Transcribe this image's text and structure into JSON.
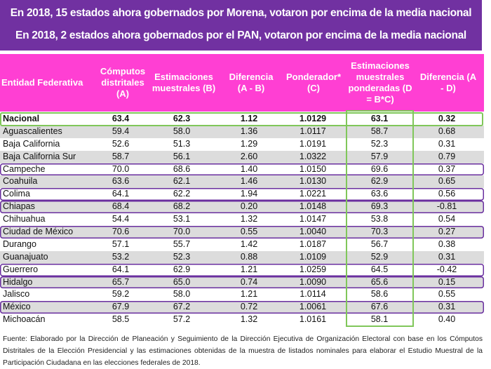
{
  "banner": {
    "line1": "En 2018, 15 estados ahora gobernados por Morena, votaron por encima de la media nacional",
    "line2": "En 2018, 2 estados ahora gobernados por el PAN, votaron por encima de la media nacional"
  },
  "headers": [
    "Entidad Federativa",
    "Cómputos distritales (A)",
    "Estimaciones muestrales (B)",
    "Diferencia (A - B)",
    "Ponderador* (C)",
    "Estimaciones muestrales ponderadas (D = B*C)",
    "Diferencia (A - D)"
  ],
  "rows": [
    {
      "e": "Nacional",
      "v": [
        "63.4",
        "62.3",
        "1.12",
        "1.0129",
        "63.1",
        "0.32"
      ],
      "highlight": "green"
    },
    {
      "e": "Aguascalientes",
      "v": [
        "59.4",
        "58.0",
        "1.36",
        "1.0117",
        "58.7",
        "0.68"
      ]
    },
    {
      "e": "Baja California",
      "v": [
        "52.6",
        "51.3",
        "1.29",
        "1.0191",
        "52.3",
        "0.31"
      ]
    },
    {
      "e": "Baja California Sur",
      "v": [
        "58.7",
        "56.1",
        "2.60",
        "1.0322",
        "57.9",
        "0.79"
      ]
    },
    {
      "e": "Campeche",
      "v": [
        "70.0",
        "68.6",
        "1.40",
        "1.0150",
        "69.6",
        "0.37"
      ],
      "highlight": "purple"
    },
    {
      "e": "Coahuila",
      "v": [
        "63.6",
        "62.1",
        "1.46",
        "1.0130",
        "62.9",
        "0.65"
      ]
    },
    {
      "e": "Colima",
      "v": [
        "64.1",
        "62.2",
        "1.94",
        "1.0221",
        "63.6",
        "0.56"
      ],
      "highlight": "purple"
    },
    {
      "e": "Chiapas",
      "v": [
        "68.4",
        "68.2",
        "0.20",
        "1.0148",
        "69.3",
        "-0.81"
      ],
      "highlight": "purple"
    },
    {
      "e": "Chihuahua",
      "v": [
        "54.4",
        "53.1",
        "1.32",
        "1.0147",
        "53.8",
        "0.54"
      ]
    },
    {
      "e": "Ciudad de México",
      "v": [
        "70.6",
        "70.0",
        "0.55",
        "1.0040",
        "70.3",
        "0.27"
      ],
      "highlight": "purple"
    },
    {
      "e": "Durango",
      "v": [
        "57.1",
        "55.7",
        "1.42",
        "1.0187",
        "56.7",
        "0.38"
      ]
    },
    {
      "e": "Guanajuato",
      "v": [
        "53.2",
        "52.3",
        "0.88",
        "1.0109",
        "52.9",
        "0.31"
      ]
    },
    {
      "e": "Guerrero",
      "v": [
        "64.1",
        "62.9",
        "1.21",
        "1.0259",
        "64.5",
        "-0.42"
      ],
      "highlight": "purple"
    },
    {
      "e": "Hidalgo",
      "v": [
        "65.7",
        "65.0",
        "0.74",
        "1.0090",
        "65.6",
        "0.15"
      ],
      "highlight": "purple"
    },
    {
      "e": "Jalisco",
      "v": [
        "59.2",
        "58.0",
        "1.21",
        "1.0114",
        "58.6",
        "0.55"
      ]
    },
    {
      "e": "México",
      "v": [
        "67.9",
        "67.2",
        "0.72",
        "1.0061",
        "67.6",
        "0.31"
      ],
      "highlight": "purple"
    },
    {
      "e": "Michoacán",
      "v": [
        "58.5",
        "57.2",
        "1.32",
        "1.0161",
        "58.1",
        "0.40"
      ]
    }
  ],
  "footnote": "Fuente: Elaborado por la Dirección de Planeación y Seguimiento de la Dirección Ejecutiva de Organización Electoral con base en los Cómputos Distritales de la Elección Presidencial y las estimaciones obtenidas de la muestra de listados nominales para elaborar el Estudio Muestral de la Participación Ciudadana en las elecciones federales de 2018."
}
